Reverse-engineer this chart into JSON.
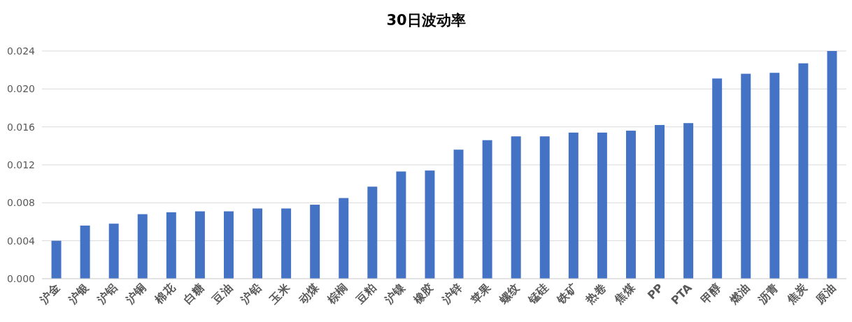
{
  "chart_data": {
    "type": "bar",
    "title": "30日波动率",
    "categories": [
      "沪金",
      "沪银",
      "沪铝",
      "沪铜",
      "棉花",
      "白糖",
      "豆油",
      "沪铅",
      "玉米",
      "动煤",
      "棕榈",
      "豆粕",
      "沪镍",
      "橡胶",
      "沪锌",
      "苹果",
      "螺纹",
      "锰硅",
      "铁矿",
      "热卷",
      "焦煤",
      "PP",
      "PTA",
      "甲醇",
      "燃油",
      "沥青",
      "焦炭",
      "原油"
    ],
    "values": [
      0.004,
      0.0056,
      0.0058,
      0.0068,
      0.007,
      0.0071,
      0.0071,
      0.0074,
      0.0074,
      0.0078,
      0.0085,
      0.0097,
      0.0113,
      0.0114,
      0.0136,
      0.0146,
      0.015,
      0.015,
      0.0154,
      0.0154,
      0.0156,
      0.0162,
      0.0164,
      0.0211,
      0.0216,
      0.0217,
      0.0227,
      0.024
    ],
    "color": "#4472c4",
    "ylim": [
      0,
      0.024
    ],
    "yticks": [
      {
        "value": 0,
        "label": "0.000"
      },
      {
        "value": 0.004,
        "label": "0.004"
      },
      {
        "value": 0.008,
        "label": "0.008"
      },
      {
        "value": 0.012,
        "label": "0.012"
      },
      {
        "value": 0.016,
        "label": "0.016"
      },
      {
        "value": 0.02,
        "label": "0.020"
      },
      {
        "value": 0.024,
        "label": "0.024"
      }
    ],
    "grid": "y"
  }
}
